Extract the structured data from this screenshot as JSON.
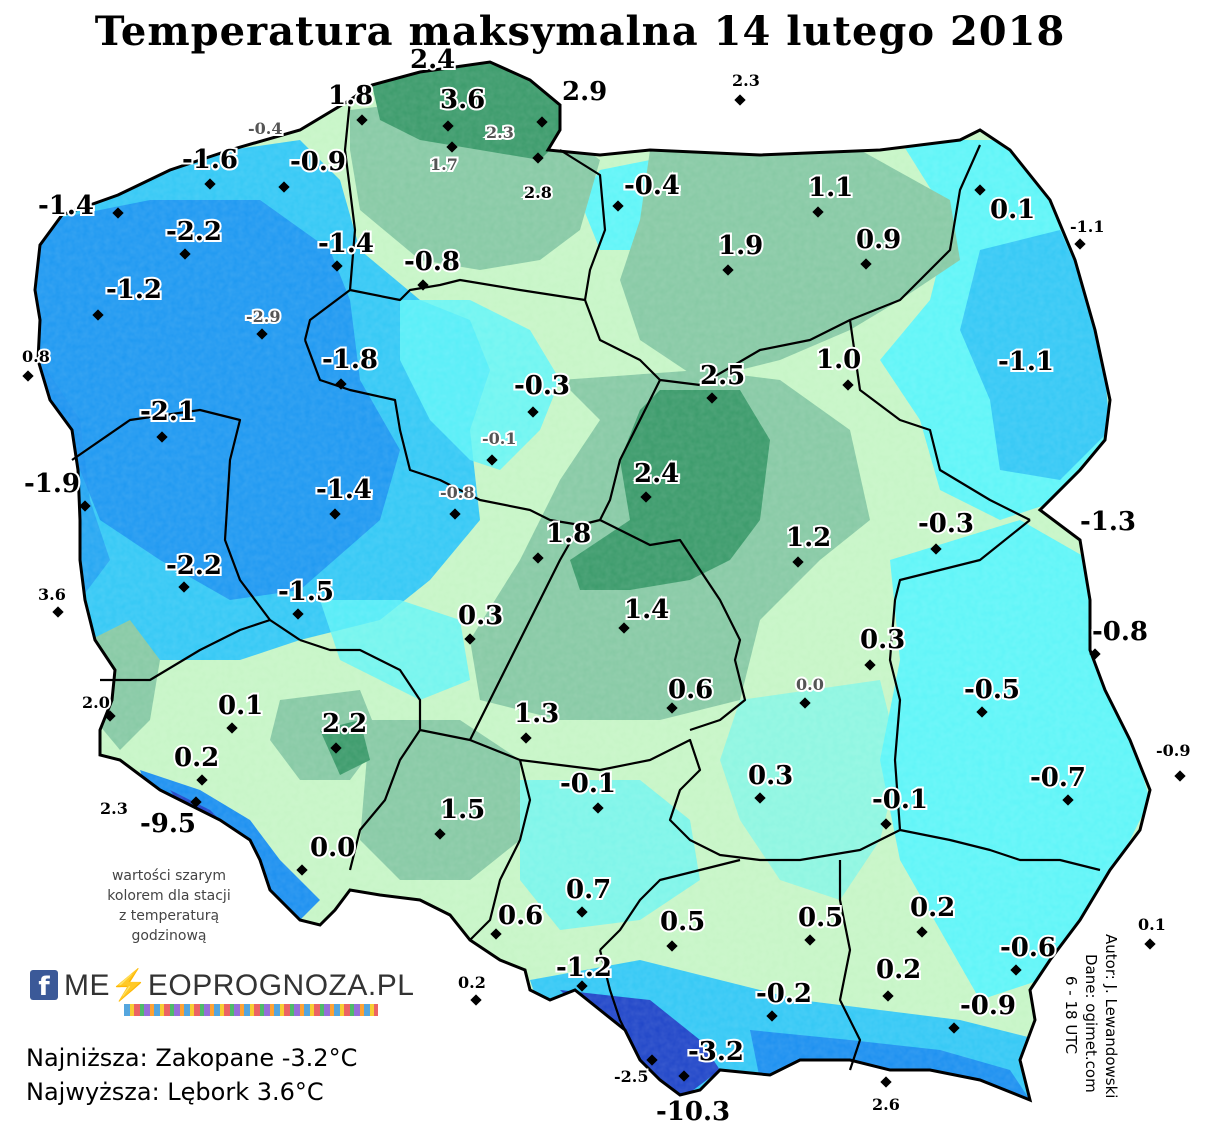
{
  "title": "Temperatura maksymalna 14 lutego 2018",
  "note": [
    "wartości szarym",
    "kolorem dla stacji",
    "z temperaturą",
    "godzinową"
  ],
  "logo": {
    "icon": "f",
    "brand": "ME⚡EOPROGNOZA.PL"
  },
  "extremes": {
    "lowest": "Najniższa: Zakopane -3.2°C",
    "highest": "Najwyższa: Lębork 3.6°C"
  },
  "credits": {
    "author": "Autor: J. Lewandowski",
    "data": "Dane: ogimet.com",
    "hours": "6 - 18 UTC"
  },
  "colors": {
    "dark_green": "#3a9a6a",
    "mid_green": "#86c9a4",
    "light_green": "#c6f5c6",
    "cyan": "#5ef5f8",
    "light_blue": "#33c8f5",
    "blue": "#1a8ff0",
    "deep_blue": "#1f45c8",
    "border": "#000000"
  },
  "stations": [
    {
      "value": "2.4",
      "style": "big"
    },
    {
      "value": "1.8",
      "style": "big"
    },
    {
      "value": "3.6",
      "style": "big"
    },
    {
      "value": "2.9",
      "style": "big"
    },
    {
      "value": "2.3",
      "style": "small"
    },
    {
      "value": "-0.4",
      "style": "small-grey"
    },
    {
      "value": "2.3",
      "style": "small-grey"
    },
    {
      "value": "1.7",
      "style": "small-grey"
    },
    {
      "value": "2.8",
      "style": "small"
    },
    {
      "value": "-1.6",
      "style": "big"
    },
    {
      "value": "-0.9",
      "style": "big"
    },
    {
      "value": "-0.4",
      "style": "big"
    },
    {
      "value": "1.1",
      "style": "big"
    },
    {
      "value": "0.1",
      "style": "big"
    },
    {
      "value": "-1.4",
      "style": "big"
    },
    {
      "value": "-2.2",
      "style": "big"
    },
    {
      "value": "-1.1",
      "style": "small"
    },
    {
      "value": "-1.4",
      "style": "big"
    },
    {
      "value": "-0.8",
      "style": "big"
    },
    {
      "value": "1.9",
      "style": "big"
    },
    {
      "value": "0.9",
      "style": "big"
    },
    {
      "value": "-1.2",
      "style": "big"
    },
    {
      "value": "-2.9",
      "style": "small-grey"
    },
    {
      "value": "0.8",
      "style": "small"
    },
    {
      "value": "-1.8",
      "style": "big"
    },
    {
      "value": "1.0",
      "style": "big"
    },
    {
      "value": "-1.1",
      "style": "big"
    },
    {
      "value": "2.5",
      "style": "big"
    },
    {
      "value": "-0.3",
      "style": "big"
    },
    {
      "value": "-2.1",
      "style": "big"
    },
    {
      "value": "-0.1",
      "style": "small-grey"
    },
    {
      "value": "2.4",
      "style": "big"
    },
    {
      "value": "-1.9",
      "style": "big"
    },
    {
      "value": "-1.4",
      "style": "big"
    },
    {
      "value": "-0.8",
      "style": "small-grey"
    },
    {
      "value": "-0.3",
      "style": "big"
    },
    {
      "value": "-1.3",
      "style": "big"
    },
    {
      "value": "1.8",
      "style": "big"
    },
    {
      "value": "1.2",
      "style": "big"
    },
    {
      "value": "-2.2",
      "style": "big"
    },
    {
      "value": "3.6",
      "style": "small"
    },
    {
      "value": "-1.5",
      "style": "big"
    },
    {
      "value": "1.4",
      "style": "big"
    },
    {
      "value": "0.3",
      "style": "big"
    },
    {
      "value": "-0.8",
      "style": "big"
    },
    {
      "value": "0.3",
      "style": "big"
    },
    {
      "value": "0.6",
      "style": "big"
    },
    {
      "value": "0.0",
      "style": "small-grey"
    },
    {
      "value": "-0.5",
      "style": "big"
    },
    {
      "value": "2.0",
      "style": "small"
    },
    {
      "value": "0.1",
      "style": "big"
    },
    {
      "value": "2.2",
      "style": "big"
    },
    {
      "value": "1.3",
      "style": "big"
    },
    {
      "value": "0.2",
      "style": "big"
    },
    {
      "value": "-0.9",
      "style": "small"
    },
    {
      "value": "-0.1",
      "style": "big"
    },
    {
      "value": "0.3",
      "style": "big"
    },
    {
      "value": "-0.7",
      "style": "big"
    },
    {
      "value": "2.3",
      "style": "small"
    },
    {
      "value": "-9.5",
      "style": "big"
    },
    {
      "value": "1.5",
      "style": "big"
    },
    {
      "value": "-0.1",
      "style": "big"
    },
    {
      "value": "0.0",
      "style": "big"
    },
    {
      "value": "0.7",
      "style": "big"
    },
    {
      "value": "0.6",
      "style": "big"
    },
    {
      "value": "0.5",
      "style": "big"
    },
    {
      "value": "0.5",
      "style": "big"
    },
    {
      "value": "0.2",
      "style": "big"
    },
    {
      "value": "0.1",
      "style": "small"
    },
    {
      "value": "-0.6",
      "style": "big"
    },
    {
      "value": "-1.2",
      "style": "big"
    },
    {
      "value": "0.2",
      "style": "small"
    },
    {
      "value": "-0.2",
      "style": "big"
    },
    {
      "value": "0.2",
      "style": "big"
    },
    {
      "value": "-0.9",
      "style": "big"
    },
    {
      "value": "-3.2",
      "style": "big"
    },
    {
      "value": "-2.5",
      "style": "small"
    },
    {
      "value": "2.6",
      "style": "small"
    },
    {
      "value": "-10.3",
      "style": "big"
    }
  ]
}
